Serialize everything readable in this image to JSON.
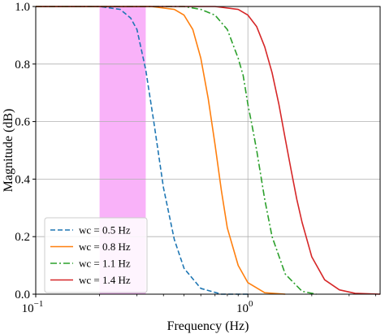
{
  "chart_data": {
    "type": "line",
    "xlabel": "Frequency (Hz)",
    "ylabel": "Magnitude (dB)",
    "xscale": "log",
    "xlim": [
      0.1,
      4.2
    ],
    "ylim": [
      0.0,
      1.0
    ],
    "grid": "major",
    "legend_position": "bottom-left",
    "x_tick_labels": [
      {
        "value": 0.1,
        "base": "10",
        "exp": "−1"
      },
      {
        "value": 1,
        "base": "10",
        "exp": "0"
      }
    ],
    "y_tick_labels": [
      "0.0",
      "0.2",
      "0.4",
      "0.6",
      "0.8",
      "1.0"
    ],
    "highlight_band": {
      "x_start": 0.2,
      "x_end": 0.33,
      "color": "#f9b2f9"
    },
    "series": [
      {
        "name": "wc = 0.5 Hz",
        "color": "#1f77b4",
        "style": "dashed",
        "x": [
          0.1,
          0.2,
          0.25,
          0.28,
          0.3,
          0.33,
          0.36,
          0.4,
          0.45,
          0.5,
          0.6,
          0.75,
          1.0
        ],
        "y": [
          1.0,
          1.0,
          0.99,
          0.96,
          0.92,
          0.78,
          0.6,
          0.37,
          0.19,
          0.09,
          0.02,
          0.0,
          0.0
        ]
      },
      {
        "name": "wc = 0.8 Hz",
        "color": "#ff7f0e",
        "style": "solid",
        "x": [
          0.1,
          0.35,
          0.45,
          0.5,
          0.55,
          0.6,
          0.65,
          0.7,
          0.75,
          0.8,
          0.9,
          1.0,
          1.2,
          1.5
        ],
        "y": [
          1.0,
          1.0,
          0.99,
          0.97,
          0.92,
          0.82,
          0.68,
          0.52,
          0.36,
          0.23,
          0.1,
          0.04,
          0.005,
          0.0
        ]
      },
      {
        "name": "wc = 1.1 Hz",
        "color": "#2ca02c",
        "style": "dashdot",
        "x": [
          0.1,
          0.5,
          0.6,
          0.7,
          0.8,
          0.9,
          0.95,
          1.0,
          1.05,
          1.1,
          1.2,
          1.3,
          1.5,
          1.8,
          2.1
        ],
        "y": [
          1.0,
          1.0,
          0.99,
          0.97,
          0.92,
          0.82,
          0.76,
          0.66,
          0.58,
          0.5,
          0.33,
          0.2,
          0.07,
          0.01,
          0.0
        ]
      },
      {
        "name": "wc = 1.4 Hz",
        "color": "#d62728",
        "style": "solid",
        "x": [
          0.1,
          0.7,
          0.9,
          1.0,
          1.1,
          1.2,
          1.3,
          1.4,
          1.5,
          1.6,
          1.7,
          1.8,
          2.0,
          2.3,
          2.7,
          3.2,
          4.2
        ],
        "y": [
          1.0,
          1.0,
          0.99,
          0.97,
          0.93,
          0.86,
          0.77,
          0.66,
          0.54,
          0.43,
          0.33,
          0.25,
          0.13,
          0.05,
          0.015,
          0.003,
          0.0
        ]
      }
    ]
  }
}
